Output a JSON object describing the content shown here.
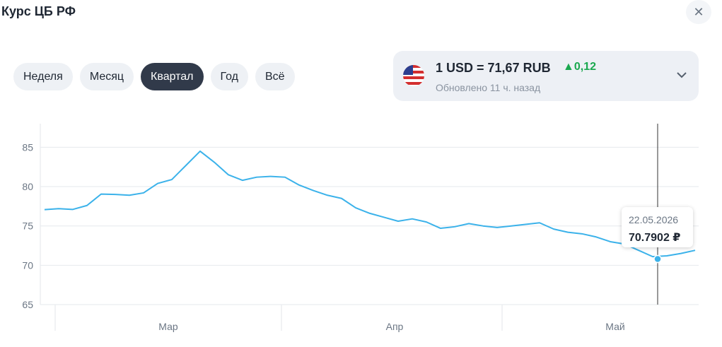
{
  "header": {
    "title": "Курс ЦБ РФ"
  },
  "tabs": [
    {
      "label": "Неделя",
      "active": false
    },
    {
      "label": "Месяц",
      "active": false
    },
    {
      "label": "Квартал",
      "active": true
    },
    {
      "label": "Год",
      "active": false
    },
    {
      "label": "Всё",
      "active": false
    }
  ],
  "rate": {
    "text": "1 USD = 71,67 RUB",
    "change": "0,12",
    "updated": "Обновлено 11 ч. назад"
  },
  "chart_data": {
    "type": "line",
    "color": "#3bb2ea",
    "grid": true,
    "values": [
      77.07,
      77.2,
      77.1,
      77.6,
      79.05,
      79.0,
      78.9,
      79.2,
      80.4,
      80.9,
      82.7,
      84.5,
      83.1,
      81.5,
      80.8,
      81.2,
      81.3,
      81.2,
      80.2,
      79.5,
      78.9,
      78.5,
      77.3,
      76.6,
      76.1,
      75.6,
      75.9,
      75.5,
      74.7,
      74.9,
      75.3,
      75.0,
      74.8,
      75.0,
      75.2,
      75.4,
      74.6,
      74.2,
      74.0,
      73.6,
      73.0,
      72.7,
      71.9,
      71.1,
      71.2,
      71.5,
      71.9
    ],
    "xlim": [
      0,
      46
    ],
    "xticks": [
      {
        "value": 8.75,
        "label": "Мар"
      },
      {
        "value": 24.75,
        "label": "Апр"
      },
      {
        "value": 40.35,
        "label": "Май"
      }
    ],
    "ylim": [
      65,
      88
    ],
    "yticks": [
      65,
      70,
      75,
      80,
      85
    ],
    "tooltip": {
      "x": 43.35,
      "date": "22.05.2026",
      "value": 70.7902,
      "label": "70.7902 ₽"
    }
  }
}
